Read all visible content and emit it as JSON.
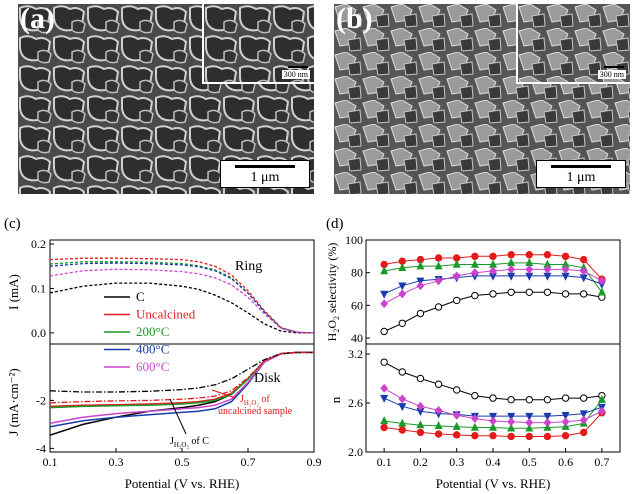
{
  "figure": {
    "panel_a": {
      "label": "(a)",
      "scale_main": "1 μm",
      "scale_inset": "300 nm"
    },
    "panel_b": {
      "label": "(b)",
      "scale_main": "1 μm",
      "scale_inset": "300 nm"
    }
  },
  "chart_data": [
    {
      "id": "c",
      "type": "line",
      "label": "(c)",
      "xlabel": "Potential (V vs. RHE)",
      "ylabel_top": "I (mA)",
      "ylabel_bottom": "J (mA·cm⁻²)",
      "x_ticks": [
        "0.1",
        "0.3",
        "0.5",
        "0.7",
        "0.9"
      ],
      "top_ticks": [
        "0.2",
        "0.1",
        "0.0"
      ],
      "bottom_ticks": [
        "-2",
        "-4"
      ],
      "xlim": [
        0.1,
        0.9
      ],
      "ylim_top": [
        0.0,
        0.2
      ],
      "ylim_bottom": [
        -4,
        0
      ],
      "annotations": {
        "ring": "Ring",
        "disk": "Disk",
        "jc": "J",
        "jc_sub": "H₂O₂",
        "jc_tail": " of C",
        "ju": "J",
        "ju_sub": "H₂O₂",
        "ju_tail": " of",
        "ju_line2": "uncalcined sample"
      },
      "legend": [
        {
          "name": "C",
          "color": "#000000"
        },
        {
          "name": "Uncalcined",
          "color": "#e41a1c"
        },
        {
          "name": "200°C",
          "color": "#1a9a2a"
        },
        {
          "name": "400°C",
          "color": "#1a3caa"
        },
        {
          "name": "600°C",
          "color": "#cc44cc"
        }
      ],
      "x": [
        0.1,
        0.2,
        0.3,
        0.4,
        0.5,
        0.55,
        0.6,
        0.65,
        0.7,
        0.75,
        0.8,
        0.85,
        0.9
      ],
      "ring_series": [
        {
          "name": "C",
          "color": "#000000",
          "values": [
            0.09,
            0.105,
            0.112,
            0.112,
            0.105,
            0.098,
            0.085,
            0.068,
            0.045,
            0.02,
            0.004,
            0.0,
            0.0
          ]
        },
        {
          "name": "Uncalcined",
          "color": "#e41a1c",
          "values": [
            0.165,
            0.168,
            0.168,
            0.167,
            0.165,
            0.16,
            0.15,
            0.13,
            0.095,
            0.05,
            0.012,
            0.001,
            0.0
          ]
        },
        {
          "name": "200°C",
          "color": "#1a9a2a",
          "values": [
            0.155,
            0.16,
            0.16,
            0.159,
            0.156,
            0.151,
            0.142,
            0.124,
            0.09,
            0.047,
            0.011,
            0.001,
            0.0
          ]
        },
        {
          "name": "400°C",
          "color": "#1a3caa",
          "values": [
            0.15,
            0.156,
            0.157,
            0.156,
            0.153,
            0.149,
            0.14,
            0.122,
            0.089,
            0.047,
            0.011,
            0.001,
            0.0
          ]
        },
        {
          "name": "600°C",
          "color": "#cc44cc",
          "values": [
            0.128,
            0.14,
            0.143,
            0.142,
            0.138,
            0.133,
            0.124,
            0.108,
            0.08,
            0.043,
            0.01,
            0.001,
            0.0
          ]
        }
      ],
      "disk_series": [
        {
          "name": "C",
          "color": "#000000",
          "values": [
            -3.45,
            -3.0,
            -2.7,
            -2.45,
            -2.3,
            -2.2,
            -2.05,
            -1.75,
            -1.1,
            -0.35,
            -0.05,
            0.0,
            0.0
          ]
        },
        {
          "name": "Uncalcined",
          "color": "#e41a1c",
          "values": [
            -2.25,
            -2.2,
            -2.18,
            -2.15,
            -2.1,
            -2.05,
            -1.95,
            -1.7,
            -1.1,
            -0.35,
            -0.05,
            0.0,
            0.0
          ]
        },
        {
          "name": "200°C",
          "color": "#1a9a2a",
          "values": [
            -2.3,
            -2.25,
            -2.22,
            -2.2,
            -2.15,
            -2.1,
            -2.0,
            -1.75,
            -1.12,
            -0.36,
            -0.05,
            0.0,
            0.0
          ]
        },
        {
          "name": "400°C",
          "color": "#1a3caa",
          "values": [
            -3.1,
            -2.85,
            -2.7,
            -2.6,
            -2.5,
            -2.45,
            -2.35,
            -2.05,
            -1.3,
            -0.4,
            -0.06,
            0.0,
            0.0
          ]
        },
        {
          "name": "600°C",
          "color": "#cc44cc",
          "values": [
            -2.95,
            -2.7,
            -2.55,
            -2.45,
            -2.35,
            -2.3,
            -2.2,
            -1.95,
            -1.25,
            -0.4,
            -0.06,
            0.0,
            0.0
          ]
        }
      ],
      "jh2o2_series": [
        {
          "name": "J_H2O2 of C",
          "color": "#000000",
          "values": [
            -1.6,
            -1.65,
            -1.65,
            -1.62,
            -1.55,
            -1.48,
            -1.35,
            -1.1,
            -0.7,
            -0.3,
            -0.05,
            0.0,
            0.0
          ]
        },
        {
          "name": "J_H2O2 of uncalcined",
          "color": "#e41a1c",
          "values": [
            -2.1,
            -2.05,
            -2.02,
            -2.0,
            -1.95,
            -1.9,
            -1.82,
            -1.6,
            -1.05,
            -0.35,
            -0.05,
            0.0,
            0.0
          ]
        }
      ]
    },
    {
      "id": "d",
      "type": "line",
      "label": "(d)",
      "xlabel": "Potential (V vs. RHE)",
      "ylabel_top": "H",
      "ylabel_top_parts": [
        "H",
        "2",
        "O",
        "2",
        " selectivity (%)"
      ],
      "ylabel_bottom": "n",
      "x_ticks": [
        "0.1",
        "0.2",
        "0.3",
        "0.4",
        "0.5",
        "0.6",
        "0.7"
      ],
      "top_ticks": [
        "100",
        "80",
        "60",
        "40"
      ],
      "bottom_ticks": [
        "3.2",
        "2.6",
        "2.0"
      ],
      "xlim": [
        0.05,
        0.75
      ],
      "ylim_top": [
        40,
        100
      ],
      "ylim_bottom": [
        2.0,
        3.2
      ],
      "x": [
        0.1,
        0.15,
        0.2,
        0.25,
        0.3,
        0.35,
        0.4,
        0.45,
        0.5,
        0.55,
        0.6,
        0.65,
        0.7
      ],
      "selectivity_series": [
        {
          "name": "C",
          "color": "#000000",
          "marker": "circle",
          "fill": "none",
          "values": [
            44,
            49,
            55,
            59,
            63,
            66,
            67,
            68,
            68,
            68,
            67,
            67,
            65
          ]
        },
        {
          "name": "Uncalcined",
          "color": "#e41a1c",
          "marker": "circle",
          "fill": "#e41a1c",
          "values": [
            85,
            87,
            88,
            89,
            89,
            90,
            90,
            91,
            91,
            91,
            90,
            88,
            76
          ]
        },
        {
          "name": "200°C",
          "color": "#1a9a2a",
          "marker": "triangle-up",
          "fill": "#1a9a2a",
          "values": [
            81,
            83,
            84,
            84,
            85,
            85,
            85,
            86,
            86,
            85,
            85,
            83,
            68
          ]
        },
        {
          "name": "400°C",
          "color": "#1a3caa",
          "marker": "triangle-down",
          "fill": "#1a3caa",
          "values": [
            67,
            72,
            75,
            76,
            77,
            78,
            78,
            78,
            78,
            78,
            78,
            77,
            73
          ]
        },
        {
          "name": "600°C",
          "color": "#cc44cc",
          "marker": "diamond",
          "fill": "#cc44cc",
          "values": [
            61,
            67,
            72,
            75,
            78,
            80,
            81,
            82,
            82,
            82,
            82,
            81,
            75
          ]
        }
      ],
      "n_series": [
        {
          "name": "C",
          "color": "#000000",
          "marker": "circle",
          "fill": "none",
          "values": [
            3.1,
            2.98,
            2.9,
            2.83,
            2.76,
            2.69,
            2.66,
            2.64,
            2.64,
            2.64,
            2.66,
            2.66,
            2.69
          ]
        },
        {
          "name": "Uncalcined",
          "color": "#e41a1c",
          "marker": "circle",
          "fill": "#e41a1c",
          "values": [
            2.3,
            2.27,
            2.24,
            2.22,
            2.21,
            2.2,
            2.2,
            2.19,
            2.19,
            2.19,
            2.2,
            2.24,
            2.48
          ]
        },
        {
          "name": "200°C",
          "color": "#1a9a2a",
          "marker": "triangle-up",
          "fill": "#1a9a2a",
          "values": [
            2.38,
            2.35,
            2.33,
            2.32,
            2.31,
            2.3,
            2.3,
            2.29,
            2.29,
            2.3,
            2.31,
            2.35,
            2.64
          ]
        },
        {
          "name": "400°C",
          "color": "#1a3caa",
          "marker": "triangle-down",
          "fill": "#1a3caa",
          "values": [
            2.66,
            2.56,
            2.5,
            2.47,
            2.46,
            2.44,
            2.44,
            2.44,
            2.44,
            2.44,
            2.45,
            2.47,
            2.55
          ]
        },
        {
          "name": "600°C",
          "color": "#cc44cc",
          "marker": "diamond",
          "fill": "#cc44cc",
          "values": [
            2.78,
            2.65,
            2.56,
            2.51,
            2.45,
            2.41,
            2.38,
            2.37,
            2.36,
            2.36,
            2.37,
            2.39,
            2.5
          ]
        }
      ]
    }
  ]
}
